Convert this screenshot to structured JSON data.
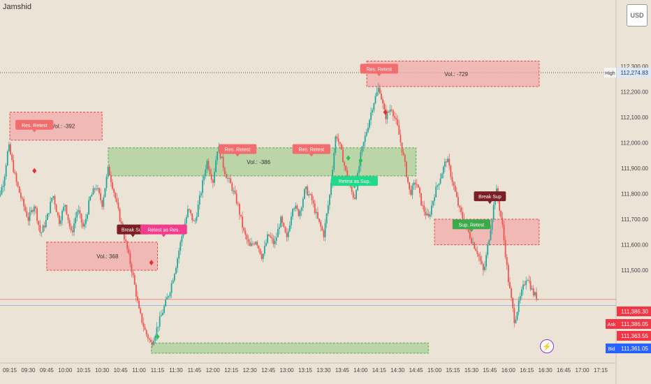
{
  "symbol": "Jamshid",
  "currency": "USD",
  "chart_data": {
    "type": "candlestick",
    "title": "",
    "ylim": [
      111150,
      112450
    ],
    "y_ticks": [
      112300,
      112200,
      112100,
      112000,
      111900,
      111800,
      111700,
      111600,
      111500
    ],
    "y_tick_labels": [
      "112,300.00",
      "112,200.00",
      "112,100.00",
      "112,000.00",
      "111,900.00",
      "111,800.00",
      "111,700.00",
      "111,600.00",
      "111,500.00"
    ],
    "x_ticks": [
      "09:15",
      "09:30",
      "09:45",
      "10:00",
      "10:15",
      "10:30",
      "10:45",
      "11:00",
      "11:15",
      "11:30",
      "11:45",
      "12:00",
      "12:15",
      "12:30",
      "12:45",
      "13:00",
      "13:15",
      "13:30",
      "13:45",
      "14:00",
      "14:15",
      "14:30",
      "14:45",
      "15:00",
      "15:15",
      "15:30",
      "15:45",
      "16:00",
      "16:15",
      "16:30",
      "16:45",
      "17:00",
      "17:15"
    ],
    "x_start": "09:00",
    "x_end": "17:25",
    "price_path": [
      [
        "09:00",
        111790
      ],
      [
        "09:05",
        111770
      ],
      [
        "09:10",
        111850
      ],
      [
        "09:14",
        111990
      ],
      [
        "09:20",
        111850
      ],
      [
        "09:25",
        111770
      ],
      [
        "09:30",
        111700
      ],
      [
        "09:35",
        111760
      ],
      [
        "09:40",
        111640
      ],
      [
        "09:45",
        111700
      ],
      [
        "09:50",
        111800
      ],
      [
        "09:55",
        111690
      ],
      [
        "10:00",
        111760
      ],
      [
        "10:05",
        111640
      ],
      [
        "10:10",
        111740
      ],
      [
        "10:15",
        111660
      ],
      [
        "10:20",
        111780
      ],
      [
        "10:25",
        111830
      ],
      [
        "10:30",
        111760
      ],
      [
        "10:35",
        111900
      ],
      [
        "10:40",
        111800
      ],
      [
        "10:45",
        111690
      ],
      [
        "10:50",
        111590
      ],
      [
        "10:55",
        111480
      ],
      [
        "11:00",
        111340
      ],
      [
        "11:05",
        111260
      ],
      [
        "11:10",
        111210
      ],
      [
        "11:15",
        111280
      ],
      [
        "11:20",
        111350
      ],
      [
        "11:25",
        111420
      ],
      [
        "11:30",
        111520
      ],
      [
        "11:35",
        111640
      ],
      [
        "11:40",
        111740
      ],
      [
        "11:45",
        111680
      ],
      [
        "11:50",
        111800
      ],
      [
        "11:55",
        111930
      ],
      [
        "12:00",
        111850
      ],
      [
        "12:04",
        111990
      ],
      [
        "12:10",
        111880
      ],
      [
        "12:15",
        111830
      ],
      [
        "12:20",
        111760
      ],
      [
        "12:25",
        111650
      ],
      [
        "12:30",
        111590
      ],
      [
        "12:35",
        111620
      ],
      [
        "12:40",
        111550
      ],
      [
        "12:45",
        111640
      ],
      [
        "12:50",
        111600
      ],
      [
        "12:55",
        111700
      ],
      [
        "13:00",
        111620
      ],
      [
        "13:05",
        111760
      ],
      [
        "13:10",
        111720
      ],
      [
        "13:15",
        111820
      ],
      [
        "13:20",
        111780
      ],
      [
        "13:25",
        111700
      ],
      [
        "13:30",
        111640
      ],
      [
        "13:35",
        111800
      ],
      [
        "13:40",
        112040
      ],
      [
        "13:45",
        111950
      ],
      [
        "13:50",
        111840
      ],
      [
        "13:55",
        111780
      ],
      [
        "14:00",
        111950
      ],
      [
        "14:05",
        112050
      ],
      [
        "14:10",
        112150
      ],
      [
        "14:15",
        112220
      ],
      [
        "14:20",
        112100
      ],
      [
        "14:25",
        112140
      ],
      [
        "14:30",
        112060
      ],
      [
        "14:35",
        111940
      ],
      [
        "14:40",
        111800
      ],
      [
        "14:45",
        111850
      ],
      [
        "14:50",
        111750
      ],
      [
        "14:55",
        111700
      ],
      [
        "15:00",
        111800
      ],
      [
        "15:05",
        111870
      ],
      [
        "15:10",
        111940
      ],
      [
        "15:15",
        111840
      ],
      [
        "15:20",
        111740
      ],
      [
        "15:25",
        111680
      ],
      [
        "15:30",
        111620
      ],
      [
        "15:35",
        111570
      ],
      [
        "15:40",
        111490
      ],
      [
        "15:45",
        111650
      ],
      [
        "15:50",
        111820
      ],
      [
        "15:55",
        111680
      ],
      [
        "16:00",
        111460
      ],
      [
        "16:05",
        111300
      ],
      [
        "16:10",
        111400
      ],
      [
        "16:15",
        111480
      ],
      [
        "16:20",
        111410
      ],
      [
        "16:25",
        111386
      ]
    ],
    "zones": [
      {
        "label": "Vol.: -392",
        "from": "09:15",
        "to": "10:30",
        "top": 112120,
        "bottom": 112010,
        "color": "#f4a6a6"
      },
      {
        "label": "Vol.: -386",
        "from": "10:35",
        "to": "14:45",
        "top": 111980,
        "bottom": 111870,
        "color": "#a7cf94"
      },
      {
        "label": "Vol.: 368",
        "from": "09:45",
        "to": "11:15",
        "top": 111610,
        "bottom": 111500,
        "color": "#f4a6a6"
      },
      {
        "label": "Vol.: -729",
        "from": "14:05",
        "to": "16:25",
        "top": 112320,
        "bottom": 112220,
        "color": "#f4a6a6"
      },
      {
        "label": "",
        "from": "15:00",
        "to": "16:25",
        "top": 111700,
        "bottom": 111600,
        "color": "#f4a6a6"
      },
      {
        "label": "",
        "from": "11:10",
        "to": "14:55",
        "top": 111215,
        "bottom": 111175,
        "color": "#a7cf94"
      }
    ],
    "signals": [
      {
        "text": "Res. Retest",
        "time": "09:35",
        "price": 112040,
        "color": "#f26d6d"
      },
      {
        "text": "Break Sup",
        "time": "10:55",
        "price": 111630,
        "color": "#7a1f25"
      },
      {
        "text": "Retest as Res.",
        "time": "11:20",
        "price": 111630,
        "color": "#f23d8f"
      },
      {
        "text": "Res. Retest",
        "time": "12:20",
        "price": 111945,
        "color": "#f26d6d"
      },
      {
        "text": "Res. Retest",
        "time": "13:20",
        "price": 111945,
        "color": "#f26d6d"
      },
      {
        "text": "Retest as Sup.",
        "time": "13:55",
        "price": 111820,
        "color": "#22d88a"
      },
      {
        "text": "Res. Retest",
        "time": "14:15",
        "price": 112260,
        "color": "#f26d6d"
      },
      {
        "text": "Break Sup",
        "time": "15:45",
        "price": 111760,
        "color": "#7a1f25"
      },
      {
        "text": "Sup. Retest",
        "time": "15:30",
        "price": 111650,
        "color": "#3ca94a"
      }
    ],
    "markers": [
      {
        "time": "09:35",
        "price": 111890,
        "shape": "diamond",
        "color": "#e62e2e"
      },
      {
        "time": "11:10",
        "price": 111530,
        "shape": "diamond",
        "color": "#e62e2e"
      },
      {
        "time": "13:50",
        "price": 111940,
        "shape": "diamond",
        "color": "#27c45a"
      },
      {
        "time": "14:00",
        "price": 111930,
        "shape": "diamond",
        "color": "#27c45a"
      },
      {
        "time": "11:15",
        "price": 111240,
        "shape": "diamond",
        "color": "#27c45a"
      },
      {
        "time": "14:20",
        "price": 112120,
        "shape": "diamond",
        "color": "#e62e2e"
      }
    ],
    "high_line": 112274.83,
    "price_tags": [
      {
        "tag": "High",
        "value": "112,274.83",
        "bg": "#dce8f6",
        "fg": "#1d3f6d"
      },
      {
        "tag": "",
        "value": "111,386.30",
        "bg": "#f23645",
        "fg": "#ffffff"
      },
      {
        "tag": "Ask",
        "value": "111,386.05",
        "bg": "#f23645",
        "fg": "#ffffff"
      },
      {
        "tag": "",
        "value": "111,363.55",
        "bg": "#f23645",
        "fg": "#ffffff"
      },
      {
        "tag": "Bid",
        "value": "111,361.05",
        "bg": "#2962ff",
        "fg": "#ffffff"
      }
    ],
    "colors": {
      "up": "#26a69a",
      "down": "#ef5350",
      "bg": "#ebe3d6",
      "axis_text": "#444444"
    }
  }
}
